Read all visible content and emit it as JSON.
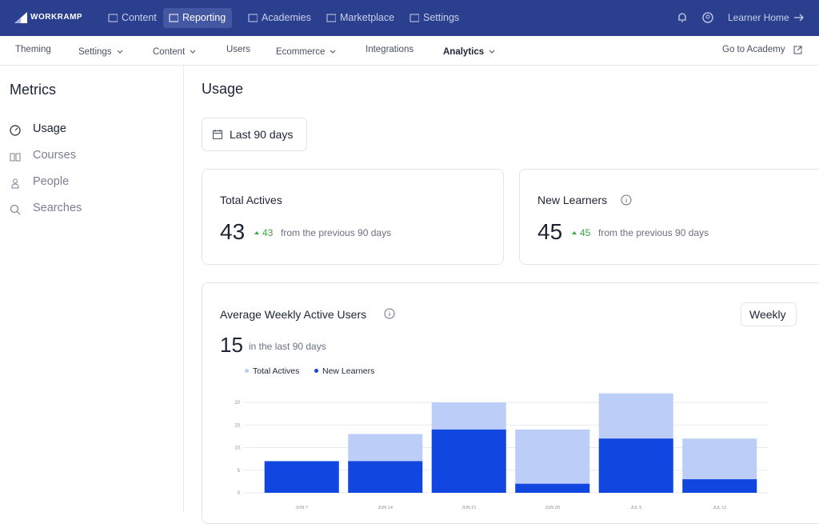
{
  "nav": {
    "brand": "WORKRAMP",
    "items": [
      "Content",
      "Reporting",
      "Academies",
      "Marketplace",
      "Settings"
    ],
    "active_index": 1,
    "learner_home": "Learner Home"
  },
  "subnav": {
    "items": [
      "Theming",
      "Settings",
      "Content",
      "Users",
      "Ecommerce",
      "Integrations",
      "Analytics"
    ],
    "active_index": 6,
    "go_to_academy": "Go to Academy"
  },
  "sidebar": {
    "title": "Metrics",
    "items": [
      "Usage",
      "Courses",
      "People",
      "Searches"
    ],
    "active_index": 0
  },
  "main": {
    "title": "Usage",
    "date_range": "Last 90 days",
    "cards": [
      {
        "title": "Total Actives",
        "value": "43",
        "change": "43",
        "change_text": "from the previous 90 days"
      },
      {
        "title": "New Learners",
        "value": "45",
        "change": "45",
        "change_text": "from the previous 90 days"
      }
    ],
    "chart_card": {
      "title": "Average Weekly Active Users",
      "value": "15",
      "value_text": "in the last 90 days",
      "period_button": "Weekly"
    }
  },
  "chart_data": {
    "type": "bar",
    "overlap": true,
    "categories": [
      "JUN 7",
      "JUN 14",
      "JUN 21",
      "JUN 28",
      "JUL 5",
      "JUL 12"
    ],
    "series": [
      {
        "name": "Total Actives",
        "color": "#bccdf7",
        "values": [
          7,
          13,
          20,
          14,
          22,
          12
        ]
      },
      {
        "name": "New Learners",
        "color": "#1246e0",
        "values": [
          7,
          7,
          14,
          2,
          12,
          3
        ]
      }
    ],
    "ylim": [
      0,
      22
    ],
    "yticks": [
      0,
      5,
      10,
      15,
      20
    ],
    "grid": true
  }
}
